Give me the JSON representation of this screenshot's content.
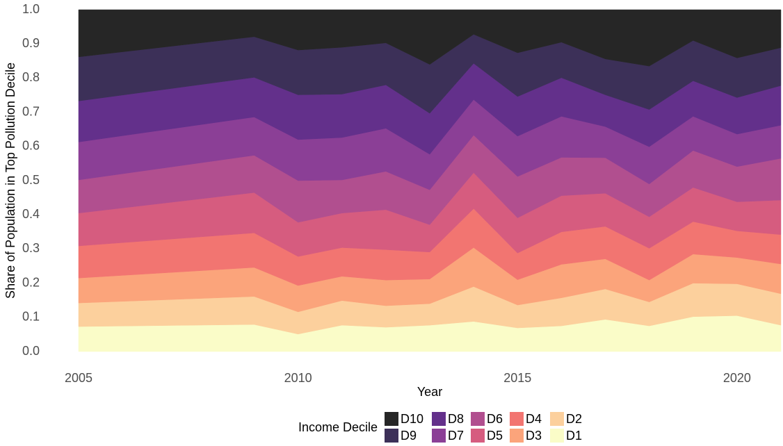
{
  "chart_data": {
    "type": "stacked_area",
    "x_label": "Year",
    "y_label": "Share of Population in Top Pollution Decile",
    "x": [
      2005,
      2009,
      2010,
      2011,
      2012,
      2013,
      2014,
      2015,
      2016,
      2017,
      2018,
      2019,
      2020,
      2021
    ],
    "xlim": [
      2005,
      2021
    ],
    "xticks": [
      2005,
      2010,
      2015,
      2020
    ],
    "ylim": [
      0,
      1
    ],
    "yticks": [
      {
        "value": 0,
        "label": "0.0"
      },
      0.1,
      0.2,
      0.3,
      0.4,
      0.5,
      0.6,
      0.7,
      0.8,
      0.9,
      {
        "value": 1,
        "label": "1.0"
      }
    ],
    "grid": false,
    "legend_title": "Income Decile",
    "legend_position": "bottom",
    "series": [
      {
        "name": "D1",
        "color": "#fafcc8",
        "values": [
          0.073,
          0.079,
          0.051,
          0.077,
          0.071,
          0.077,
          0.088,
          0.069,
          0.075,
          0.094,
          0.075,
          0.102,
          0.105,
          0.077
        ]
      },
      {
        "name": "D2",
        "color": "#fcd09d",
        "values": [
          0.069,
          0.082,
          0.065,
          0.072,
          0.063,
          0.063,
          0.102,
          0.067,
          0.082,
          0.089,
          0.07,
          0.098,
          0.093,
          0.092
        ]
      },
      {
        "name": "D3",
        "color": "#fba47b",
        "values": [
          0.073,
          0.085,
          0.077,
          0.071,
          0.075,
          0.072,
          0.114,
          0.074,
          0.098,
          0.088,
          0.064,
          0.085,
          0.077,
          0.087
        ]
      },
      {
        "name": "D4",
        "color": "#f27571",
        "values": [
          0.094,
          0.101,
          0.085,
          0.084,
          0.089,
          0.079,
          0.114,
          0.078,
          0.095,
          0.095,
          0.093,
          0.095,
          0.078,
          0.086
        ]
      },
      {
        "name": "D5",
        "color": "#d65c7f",
        "values": [
          0.096,
          0.118,
          0.1,
          0.101,
          0.117,
          0.08,
          0.105,
          0.103,
          0.106,
          0.097,
          0.092,
          0.1,
          0.085,
          0.101
        ]
      },
      {
        "name": "D6",
        "color": "#b14f8f",
        "values": [
          0.097,
          0.109,
          0.122,
          0.097,
          0.112,
          0.102,
          0.11,
          0.121,
          0.112,
          0.104,
          0.096,
          0.108,
          0.103,
          0.122
        ]
      },
      {
        "name": "D7",
        "color": "#8b3f96",
        "values": [
          0.111,
          0.112,
          0.12,
          0.124,
          0.126,
          0.104,
          0.104,
          0.118,
          0.12,
          0.091,
          0.109,
          0.1,
          0.095,
          0.097
        ]
      },
      {
        "name": "D8",
        "color": "#63308b",
        "values": [
          0.12,
          0.116,
          0.131,
          0.127,
          0.127,
          0.12,
          0.106,
          0.116,
          0.113,
          0.093,
          0.109,
          0.104,
          0.107,
          0.116
        ]
      },
      {
        "name": "D9",
        "color": "#3c3058",
        "values": [
          0.129,
          0.119,
          0.131,
          0.137,
          0.123,
          0.143,
          0.085,
          0.128,
          0.104,
          0.105,
          0.127,
          0.118,
          0.116,
          0.111
        ]
      },
      {
        "name": "D10",
        "color": "#262626",
        "values": [
          0.138,
          0.079,
          0.118,
          0.11,
          0.097,
          0.16,
          0.072,
          0.126,
          0.095,
          0.144,
          0.165,
          0.09,
          0.141,
          0.111
        ]
      }
    ]
  }
}
